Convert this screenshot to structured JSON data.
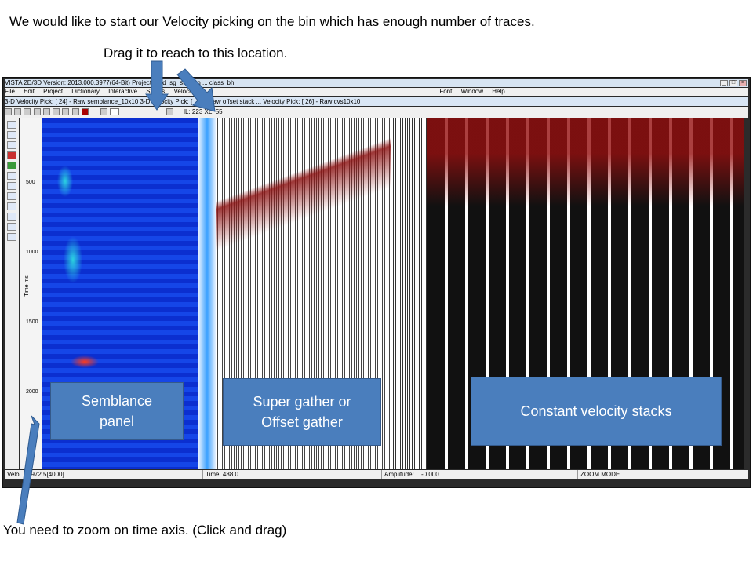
{
  "captions": {
    "top": "We would like to start our Velocity picking on the bin which has enough number of  traces.",
    "drag": "Drag it to reach to this location.",
    "zoom": "You need to zoom on time axis. (Click and drag)"
  },
  "window": {
    "title": "VISTA 2D/3D Version: 2013.000.3977(64-Bit) Project: E:\\d_sg_stratton ... class_bh",
    "menu": [
      "File",
      "Edit",
      "Project",
      "Dictionary",
      "Interactive",
      "Statics",
      "Velocity",
      "",
      "",
      "",
      "Font",
      "Window",
      "Help"
    ],
    "subwindow_title": "3-D Velocity Pick: [ 24] - Raw semblance_10x10 3-D Velocity Pick: [ ... ] - Raw offset stack ... Velocity Pick: [ 26] - Raw cvs10x10",
    "gather_header": "IL: 223 XL: 55",
    "time_axis_label": "Time ms",
    "time_ticks": [
      "500",
      "1000",
      "1500",
      "2000"
    ],
    "status": {
      "velocity": "Velo",
      "velocity_value": "3972.5[4000]",
      "time": "Time: 488.0",
      "amplitude_label": "Amplitude:",
      "amplitude_value": "-0.000",
      "mode": "ZOOM MODE"
    }
  },
  "labels": {
    "semblance": "Semblance panel",
    "gather": "Super gather or Offset gather",
    "cvs": "Constant velocity stacks"
  },
  "colors": {
    "callout": "#4a7ebd",
    "arrow": "#4a7ebd"
  }
}
